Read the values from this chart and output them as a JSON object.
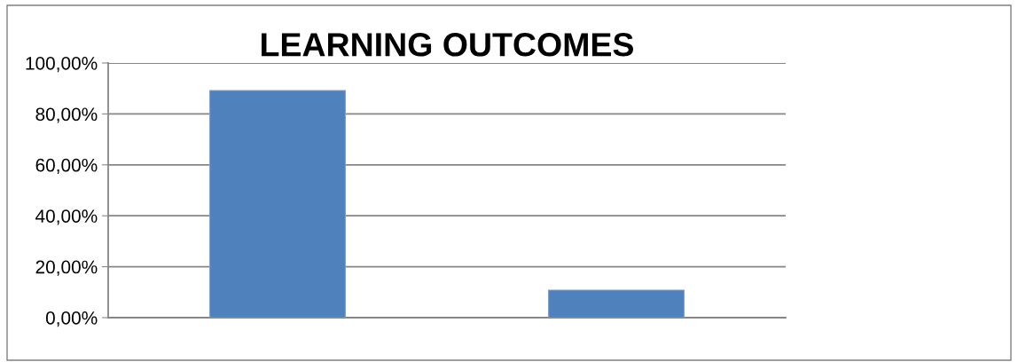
{
  "chart_data": {
    "type": "bar",
    "title": "LEARNING OUTCOMES",
    "categories": [
      null,
      null
    ],
    "values": [
      89.2,
      10.8
    ],
    "color": "#4f81bd",
    "ylim": [
      0,
      100
    ],
    "yticks": [
      {
        "value": 0,
        "label": "0,00%"
      },
      {
        "value": 20,
        "label": "20,00%"
      },
      {
        "value": 40,
        "label": "40,00%"
      },
      {
        "value": 60,
        "label": "60,00%"
      },
      {
        "value": 80,
        "label": "80,00%"
      },
      {
        "value": 100,
        "label": "100,00%"
      }
    ],
    "grid": "y",
    "legend": false
  }
}
